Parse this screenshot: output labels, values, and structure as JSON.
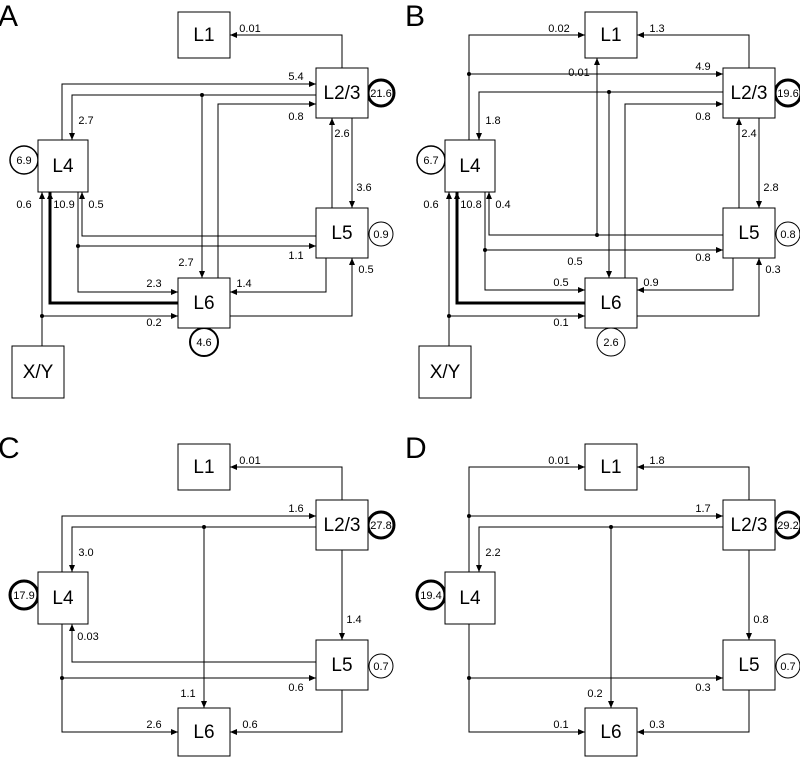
{
  "panels": [
    {
      "letter": "A",
      "nodes": [
        "L1",
        "L2/3",
        "L4",
        "L5",
        "L6",
        "X/Y"
      ],
      "edge_labels": [
        "0.01",
        "5.4",
        "2.7",
        "21.6",
        "2.7",
        "0.8",
        "2.6",
        "3.6",
        "6.9",
        "0.6",
        "10.9",
        "0.5",
        "1.1",
        "2.3",
        "1.4",
        "0.5",
        "0.2",
        "4.6",
        "0.9"
      ]
    },
    {
      "letter": "B",
      "nodes": [
        "L1",
        "L2/3",
        "L4",
        "L5",
        "L6",
        "X/Y"
      ],
      "edge_labels": [
        "0.02",
        "1.3",
        "0.01",
        "4.9",
        "1.8",
        "19.6",
        "0.8",
        "2.4",
        "2.8",
        "6.7",
        "0.6",
        "10.8",
        "0.4",
        "0.8",
        "0.5",
        "0.8",
        "0.5",
        "0.9",
        "0.3",
        "0.1",
        "2.6"
      ]
    },
    {
      "letter": "C",
      "nodes": [
        "L1",
        "L2/3",
        "L4",
        "L5",
        "L6"
      ],
      "edge_labels": [
        "0.01",
        "1.6",
        "27.8",
        "3.0",
        "17.9",
        "1.4",
        "0.03",
        "0.7",
        "1.1",
        "0.6",
        "2.6",
        "0.6"
      ]
    },
    {
      "letter": "D",
      "nodes": [
        "L1",
        "L2/3",
        "L4",
        "L5",
        "L6"
      ],
      "edge_labels": [
        "0.01",
        "1.8",
        "1.7",
        "29.2",
        "2.2",
        "19.4",
        "0.8",
        "0.7",
        "0.2",
        "0.3",
        "0.1",
        "0.3"
      ]
    }
  ]
}
